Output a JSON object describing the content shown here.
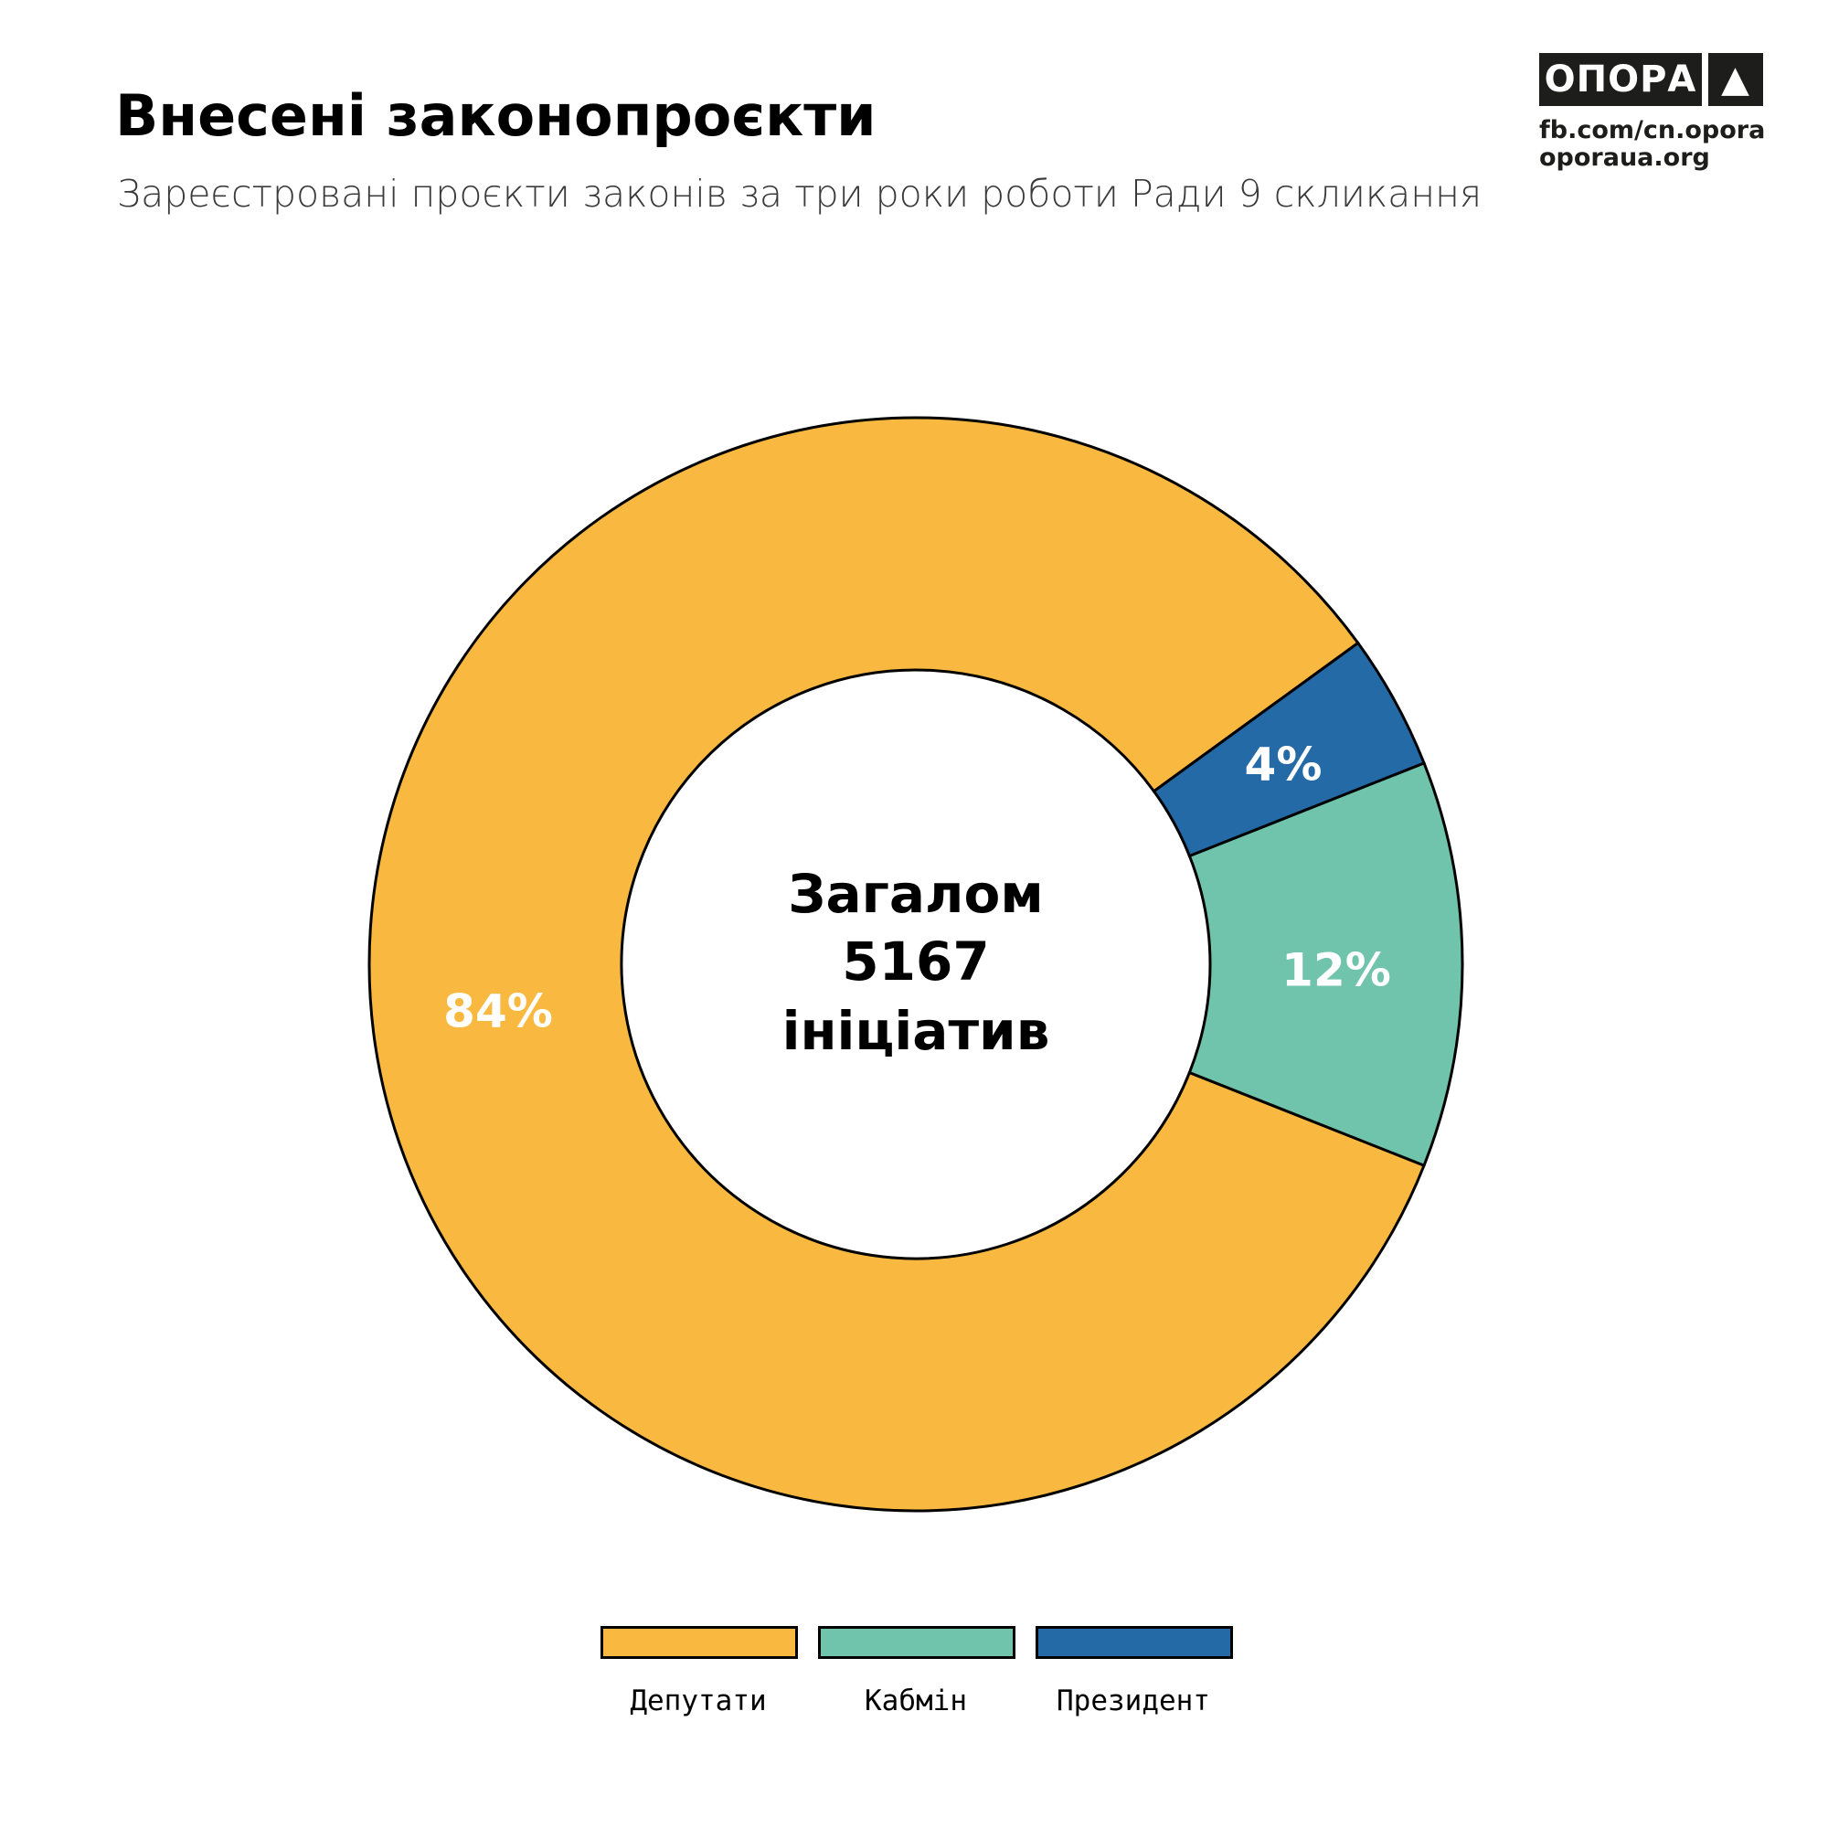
{
  "header": {
    "title": "Внесені законопроєкти",
    "subtitle": "Зареєстровані проєкти законів за три роки роботи Ради 9 скликання"
  },
  "logo": {
    "name": "ОПОРА",
    "symbol": "▲",
    "links": [
      "fb.com/cn.opora",
      "oporaua.org"
    ]
  },
  "chart_data": {
    "type": "pie",
    "donut": true,
    "center_text": [
      "Загалом",
      "5167",
      "ініціатив"
    ],
    "total": 5167,
    "categories": [
      "Депутати",
      "Кабмін",
      "Президент"
    ],
    "values": [
      84,
      12,
      4
    ],
    "value_labels": [
      "84%",
      "12%",
      "4%"
    ],
    "colors": [
      "#F9B941",
      "#71C4AC",
      "#236AA7"
    ],
    "label_colors": [
      "#ffffff",
      "#ffffff",
      "#ffffff"
    ],
    "legend_position": "bottom"
  }
}
